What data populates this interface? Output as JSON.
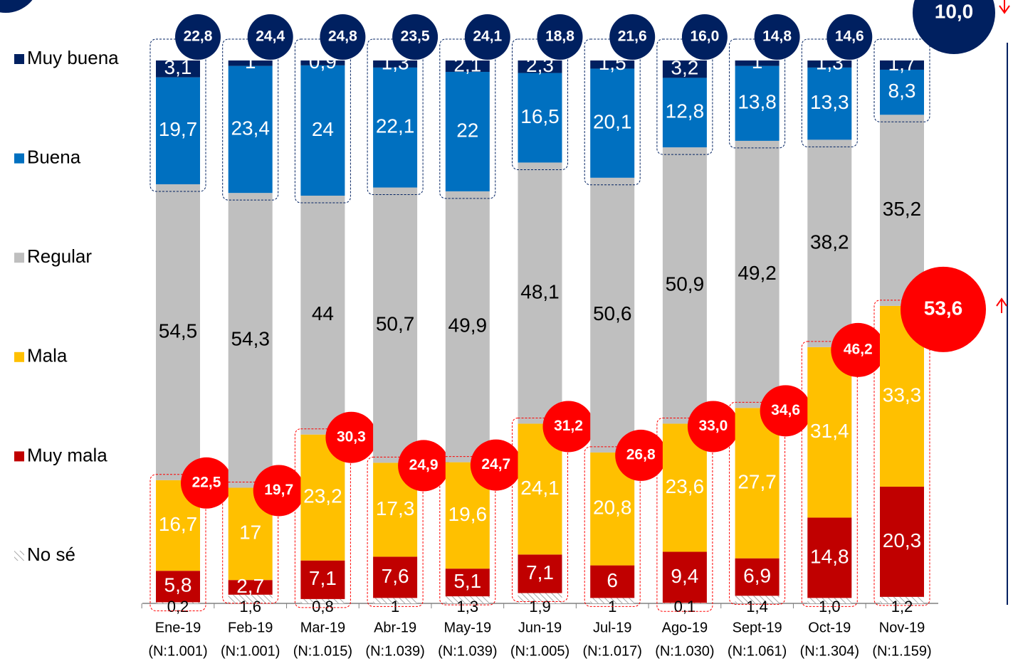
{
  "chart_data": {
    "type": "bar",
    "stacked": true,
    "categories": [
      "Ene-19",
      "Feb-19",
      "Mar-19",
      "Abr-19",
      "May-19",
      "Jun-19",
      "Jul-19",
      "Ago-19",
      "Sept-19",
      "Oct-19",
      "Nov-19"
    ],
    "sample_sizes": [
      "(N:1.001)",
      "(N:1.001)",
      "(N:1.015)",
      "(N:1.039)",
      "(N:1.039)",
      "(N:1.005)",
      "(N:1.017)",
      "(N:1.030)",
      "(N:1.061)",
      "(N:1.304)",
      "(N:1.159)"
    ],
    "ylim": [
      0,
      100
    ],
    "series": [
      {
        "name": "Muy buena",
        "color": "#002060",
        "label_color": "#ffffff",
        "values": [
          3.1,
          1,
          0.9,
          1.3,
          2.1,
          2.3,
          1.5,
          3.2,
          1,
          1.3,
          1.7
        ],
        "value_labels": [
          "3,1",
          "1",
          "0,9",
          "1,3",
          "2,1",
          "2,3",
          "1,5",
          "3,2",
          "1",
          "1,3",
          "1,7"
        ]
      },
      {
        "name": "Buena",
        "color": "#0070c0",
        "label_color": "#ffffff",
        "values": [
          19.7,
          23.4,
          24,
          22.1,
          22,
          16.5,
          20.1,
          12.8,
          13.8,
          13.3,
          8.3
        ],
        "value_labels": [
          "19,7",
          "23,4",
          "24",
          "22,1",
          "22",
          "16,5",
          "20,1",
          "12,8",
          "13,8",
          "13,3",
          "8,3"
        ]
      },
      {
        "name": "Regular",
        "color": "#bfbfbf",
        "label_color": "#000000",
        "values": [
          54.5,
          54.3,
          44,
          50.7,
          49.9,
          48.1,
          50.6,
          50.9,
          49.2,
          38.2,
          35.2
        ],
        "value_labels": [
          "54,5",
          "54,3",
          "44",
          "50,7",
          "49,9",
          "48,1",
          "50,6",
          "50,9",
          "49,2",
          "38,2",
          "35,2"
        ]
      },
      {
        "name": "Mala",
        "color": "#ffc000",
        "label_color": "#ffffff",
        "values": [
          16.7,
          17,
          23.2,
          17.3,
          19.6,
          24.1,
          20.8,
          23.6,
          27.7,
          31.4,
          33.3
        ],
        "value_labels": [
          "16,7",
          "17",
          "23,2",
          "17,3",
          "19,6",
          "24,1",
          "20,8",
          "23,6",
          "27,7",
          "31,4",
          "33,3"
        ]
      },
      {
        "name": "Muy mala",
        "color": "#c00000",
        "label_color": "#ffffff",
        "values": [
          5.8,
          2.7,
          7.1,
          7.6,
          5.1,
          7.1,
          6,
          9.4,
          6.9,
          14.8,
          20.3
        ],
        "value_labels": [
          "5,8",
          "2,7",
          "7,1",
          "7,6",
          "5,1",
          "7,1",
          "6",
          "9,4",
          "6,9",
          "14,8",
          "20,3"
        ]
      },
      {
        "name": "No sé",
        "color": "hatch",
        "label_color": "#000000",
        "values": [
          0.2,
          1.6,
          0.8,
          1,
          1.3,
          1.9,
          1,
          0.1,
          1.4,
          1.0,
          1.2
        ],
        "value_labels": [
          "0,2",
          "1,6",
          "0,8",
          "1",
          "1,3",
          "1,9",
          "1",
          "0,1",
          "1,4",
          "1,0",
          "1,2"
        ]
      }
    ],
    "positive_totals": {
      "color": "#002060",
      "values": [
        22.8,
        24.4,
        24.8,
        23.5,
        24.1,
        18.8,
        21.6,
        16.0,
        14.8,
        14.6,
        10.0
      ],
      "labels": [
        "22,8",
        "24,4",
        "24,8",
        "23,5",
        "24,1",
        "18,8",
        "21,6",
        "16,0",
        "14,8",
        "14,6",
        "10,0"
      ]
    },
    "negative_totals": {
      "color": "#ff0000",
      "values": [
        22.5,
        19.7,
        30.3,
        24.9,
        24.7,
        31.2,
        26.8,
        33.0,
        34.6,
        46.2,
        53.6
      ],
      "labels": [
        "22,5",
        "19,7",
        "30,3",
        "24,9",
        "24,7",
        "31,2",
        "26,8",
        "33,0",
        "34,6",
        "46,2",
        "53,6"
      ]
    }
  }
}
